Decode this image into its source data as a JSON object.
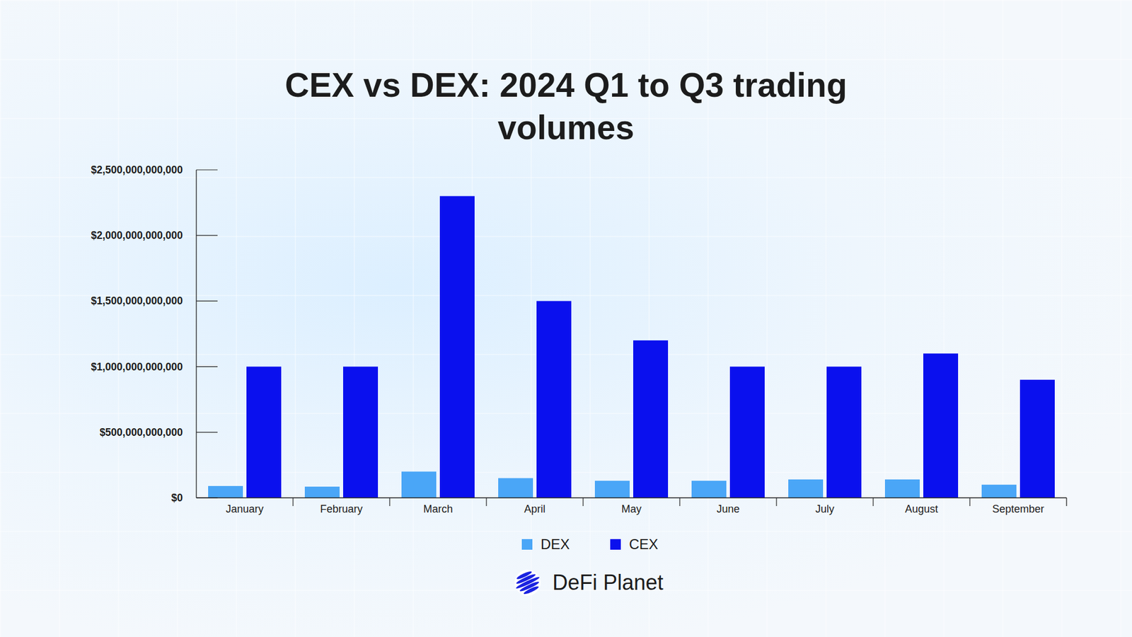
{
  "chart_data": {
    "type": "bar",
    "title": "CEX vs DEX: 2024 Q1 to Q3 trading volumes",
    "categories": [
      "January",
      "February",
      "March",
      "April",
      "May",
      "June",
      "July",
      "August",
      "September"
    ],
    "series": [
      {
        "name": "DEX",
        "color": "#4aa6f7",
        "values": [
          90000000000,
          85000000000,
          200000000000,
          150000000000,
          130000000000,
          130000000000,
          140000000000,
          140000000000,
          100000000000
        ]
      },
      {
        "name": "CEX",
        "color": "#0a10ee",
        "values": [
          1000000000000,
          1000000000000,
          2300000000000,
          1500000000000,
          1200000000000,
          1000000000000,
          1000000000000,
          1100000000000,
          900000000000
        ]
      }
    ],
    "ylim": [
      0,
      2500000000000
    ],
    "yticks": [
      {
        "value": 0,
        "label": "$0"
      },
      {
        "value": 500000000000,
        "label": "$500,000,000,000"
      },
      {
        "value": 1000000000000,
        "label": "$1,000,000,000,000"
      },
      {
        "value": 1500000000000,
        "label": "$1,500,000,000,000"
      },
      {
        "value": 2000000000000,
        "label": "$2,000,000,000,000"
      },
      {
        "value": 2500000000000,
        "label": "$2,500,000,000,000"
      }
    ],
    "grid": false,
    "legend": "bottom",
    "annotations": [
      "DeFi Planet"
    ]
  }
}
